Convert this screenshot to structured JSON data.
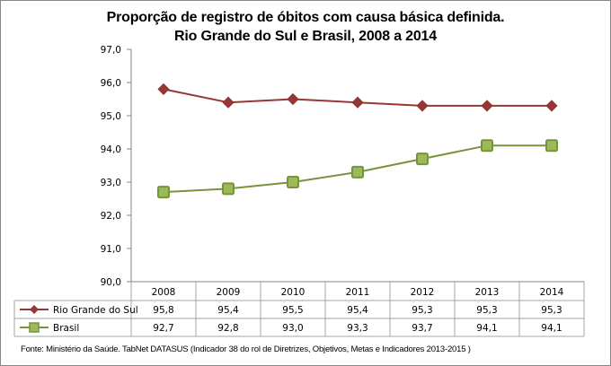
{
  "chart_data": {
    "type": "line",
    "title_line1": "Proporção de registro de óbitos com causa básica definida.",
    "title_line2": "Rio Grande do Sul e Brasil, 2008 a 2014",
    "categories": [
      "2008",
      "2009",
      "2010",
      "2011",
      "2012",
      "2013",
      "2014"
    ],
    "series": [
      {
        "name": "Rio Grande do Sul",
        "values": [
          95.8,
          95.4,
          95.5,
          95.4,
          95.3,
          95.3,
          95.3
        ],
        "labels": [
          "95,8",
          "95,4",
          "95,5",
          "95,4",
          "95,3",
          "95,3",
          "95,3"
        ],
        "color": "#953735",
        "marker": "diamond"
      },
      {
        "name": "Brasil",
        "values": [
          92.7,
          92.8,
          93.0,
          93.3,
          93.7,
          94.1,
          94.1
        ],
        "labels": [
          "92,7",
          "92,8",
          "93,0",
          "93,3",
          "93,7",
          "94,1",
          "94,1"
        ],
        "color": "#77933C",
        "marker_fill": "#9BBB59",
        "marker": "square"
      }
    ],
    "yticks": [
      "90,0",
      "91,0",
      "92,0",
      "93,0",
      "94,0",
      "95,0",
      "96,0",
      "97,0"
    ],
    "ylim": [
      90,
      97
    ],
    "xlabel": "",
    "ylabel": "",
    "grid": false,
    "legend": "data-table-bottom"
  },
  "source": "Fonte: Ministério da Saúde. TabNet DATASUS (Indicador 38 do rol de Diretrizes, Objetivos, Metas e Indicadores 2013-2015 )"
}
